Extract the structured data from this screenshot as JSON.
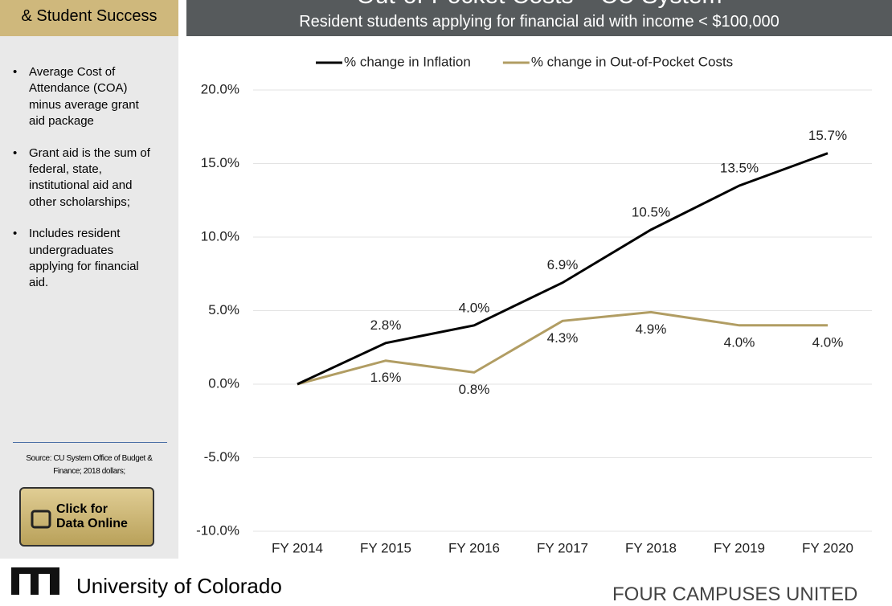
{
  "header": {
    "left_title": "& Student Success",
    "title": "Out-of-Pocket Costs – CU System",
    "subtitle": "Resident students applying for financial aid with income < $100,000"
  },
  "sidebar": {
    "bullets": [
      "Average Cost of Attendance (COA) minus average grant aid package",
      "Grant aid is the sum of federal, state, institutional aid and other scholarships;",
      "Includes resident undergraduates applying for financial aid."
    ],
    "source": "Source: CU System Office of Budget & Finance; 2018 dollars;",
    "button": [
      "Click for",
      "Data Online"
    ]
  },
  "footer": {
    "university": "University of Colorado",
    "tagline": "FOUR CAMPUSES UNITED"
  },
  "chart_data": {
    "type": "line",
    "categories": [
      "FY 2014",
      "FY 2015",
      "FY 2016",
      "FY 2017",
      "FY 2018",
      "FY 2019",
      "FY 2020"
    ],
    "series": [
      {
        "name": "% change in Inflation",
        "color": "#000000",
        "values": [
          0,
          2.8,
          4.0,
          6.9,
          10.5,
          13.5,
          15.7
        ],
        "value_labels": [
          null,
          "2.8%",
          "4.0%",
          "6.9%",
          "10.5%",
          "13.5%",
          "15.7%"
        ],
        "label_position": "above"
      },
      {
        "name": "% change in Out-of-Pocket Costs",
        "color": "#b19d63",
        "values": [
          0,
          1.6,
          0.8,
          4.3,
          4.9,
          4.0,
          4.0
        ],
        "value_labels": [
          null,
          "1.6%",
          "0.8%",
          "4.3%",
          "4.9%",
          "4.0%",
          "4.0%"
        ],
        "label_position": "below"
      }
    ],
    "ylim": [
      -10,
      20
    ],
    "yticks": [
      {
        "value": -10,
        "label": "-10.0%"
      },
      {
        "value": -5,
        "label": "-5.0%"
      },
      {
        "value": 0,
        "label": "0.0%"
      },
      {
        "value": 5,
        "label": "5.0%"
      },
      {
        "value": 10,
        "label": "10.0%"
      },
      {
        "value": 15,
        "label": "15.0%"
      },
      {
        "value": 20,
        "label": "20.0%"
      }
    ],
    "grid": true,
    "legend": "top"
  }
}
